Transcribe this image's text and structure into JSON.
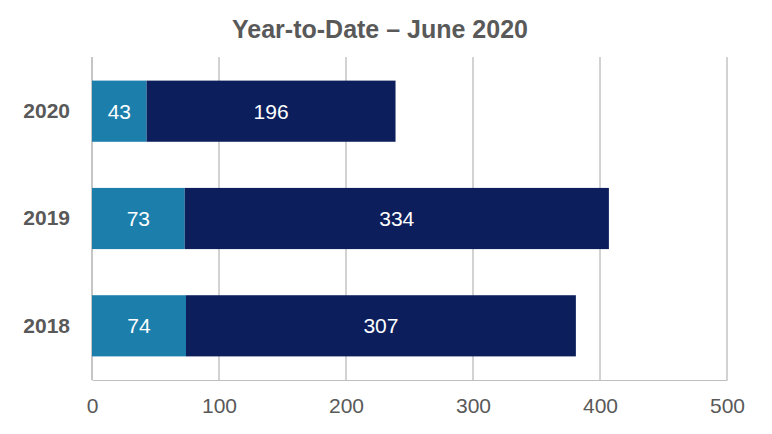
{
  "chart_data": {
    "type": "bar",
    "title": "Year-to-Date – June 2020",
    "orientation": "horizontal",
    "stacked": true,
    "data_labels": true,
    "grid": true,
    "categories": [
      "2020",
      "2019",
      "2018"
    ],
    "series": [
      {
        "color": "#1b7eab",
        "values": [
          43,
          73,
          74
        ]
      },
      {
        "color": "#0c1f5c",
        "values": [
          196,
          334,
          307
        ]
      }
    ],
    "xlim": [
      0,
      500
    ],
    "xticks": [
      0,
      100,
      200,
      300,
      400,
      500
    ]
  }
}
